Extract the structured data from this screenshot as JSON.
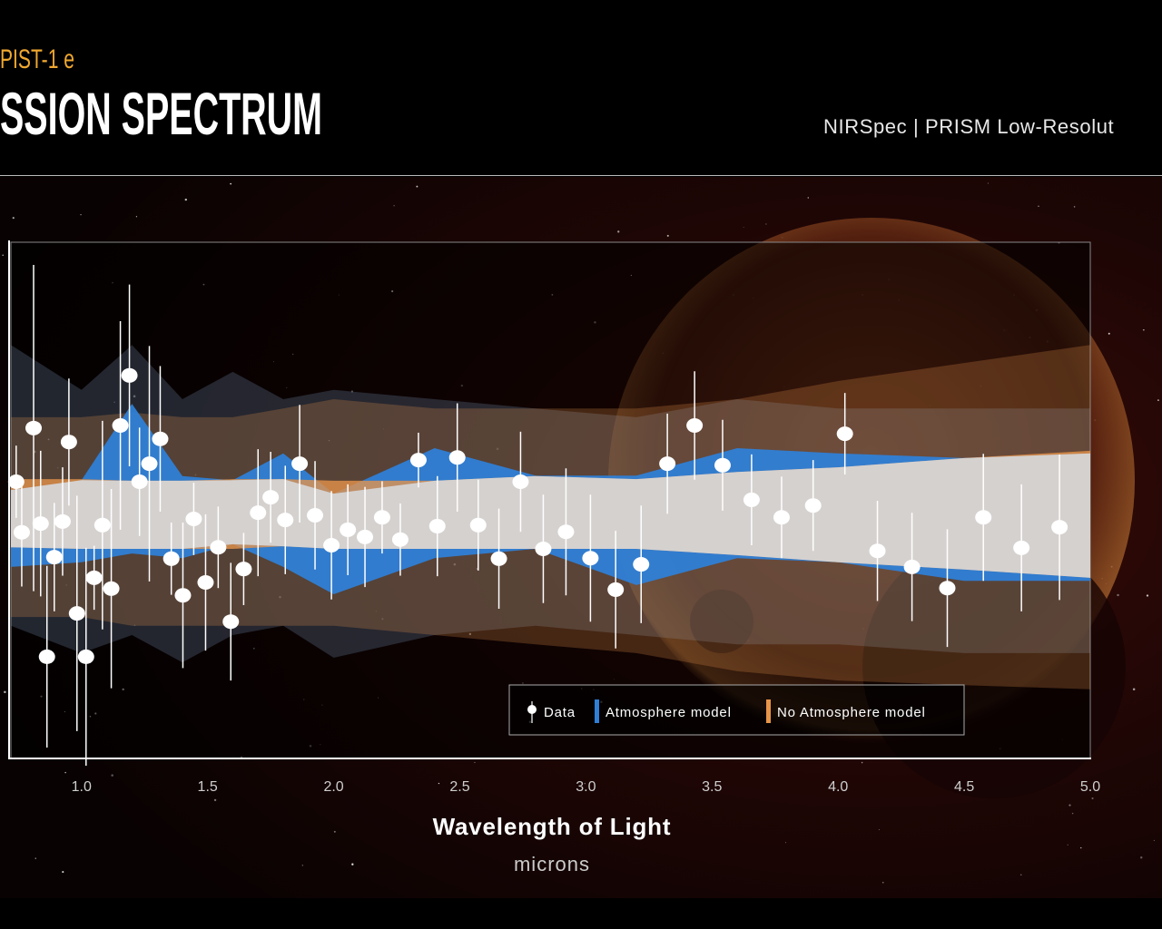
{
  "chart_data": {
    "type": "scatter",
    "supertitle": "PIST-1 e",
    "title": "SSION SPECTRUM",
    "instrument": "NIRSpec | PRISM Low-Resolut",
    "xlabel": "Wavelength of Light",
    "xunit": "microns",
    "xlim": [
      0.72,
      5.0
    ],
    "xticks": [
      {
        "value": 1.0,
        "label": "1.0"
      },
      1.5,
      {
        "value": 2.0,
        "label": "2.0"
      },
      2.5,
      {
        "value": 3.0,
        "label": "3.0"
      },
      3.5,
      {
        "value": 4.0,
        "label": "4.0"
      },
      4.5,
      {
        "value": 5.0,
        "label": "5.0"
      }
    ],
    "ylim": [
      0,
      100
    ],
    "legend": "lower right",
    "series": [
      {
        "name": "Data",
        "color": "#ffffff",
        "x": [
          0.741,
          0.763,
          0.81,
          0.838,
          0.863,
          0.892,
          0.925,
          0.95,
          0.982,
          1.018,
          1.05,
          1.083,
          1.118,
          1.154,
          1.19,
          1.23,
          1.269,
          1.312,
          1.356,
          1.402,
          1.445,
          1.492,
          1.542,
          1.592,
          1.643,
          1.7,
          1.75,
          1.808,
          1.865,
          1.926,
          1.991,
          2.056,
          2.124,
          2.192,
          2.264,
          2.336,
          2.411,
          2.49,
          2.573,
          2.655,
          2.741,
          2.831,
          2.921,
          3.018,
          3.118,
          3.219,
          3.323,
          3.431,
          3.542,
          3.657,
          3.776,
          3.901,
          4.027,
          4.156,
          4.293,
          4.433,
          4.576,
          4.727,
          4.878
        ],
        "values": [
          53.6,
          43.8,
          64.0,
          45.5,
          19.7,
          39.0,
          45.9,
          61.3,
          28.1,
          19.7,
          35.0,
          45.2,
          32.9,
          64.5,
          74.2,
          53.6,
          57.1,
          61.9,
          38.7,
          31.6,
          46.4,
          34.1,
          40.9,
          26.5,
          36.7,
          47.6,
          50.6,
          46.2,
          57.1,
          47.1,
          41.3,
          44.3,
          42.9,
          46.7,
          42.4,
          57.8,
          45.0,
          58.3,
          45.2,
          38.7,
          53.6,
          40.6,
          43.9,
          38.8,
          32.7,
          37.6,
          57.1,
          64.5,
          56.8,
          50.1,
          46.7,
          49.0,
          62.9,
          40.2,
          37.1,
          33.0,
          46.7,
          40.8,
          44.8
        ],
        "errors": [
          7.0,
          10.5,
          31.6,
          14.1,
          17.6,
          10.5,
          10.5,
          12.3,
          22.8,
          21.1,
          6.2,
          20.2,
          19.3,
          20.2,
          17.6,
          10.5,
          22.8,
          14.1,
          7.0,
          14.1,
          7.0,
          13.2,
          7.9,
          11.4,
          7.0,
          12.3,
          8.8,
          10.5,
          11.4,
          10.5,
          10.5,
          8.8,
          9.7,
          7.0,
          7.0,
          5.3,
          9.7,
          10.5,
          8.8,
          9.7,
          9.7,
          10.5,
          12.3,
          12.3,
          11.4,
          11.4,
          9.7,
          10.5,
          8.8,
          8.8,
          7.9,
          8.8,
          7.9,
          9.7,
          10.5,
          11.4,
          12.3,
          12.3,
          14.1
        ]
      }
    ],
    "bands": [
      {
        "name": "Atmosphere model",
        "color": "#2f7fd6",
        "x": [
          0.72,
          1.0,
          1.2,
          1.4,
          1.6,
          1.8,
          2.0,
          2.4,
          2.8,
          3.2,
          3.6,
          4.0,
          4.5,
          5.0
        ],
        "inner_upper": [
          52.0,
          53.9,
          68.7,
          54.7,
          53.9,
          59.1,
          51.3,
          60.1,
          54.8,
          54.8,
          60.1,
          59.1,
          58.2,
          59.1
        ],
        "inner_lower": [
          37.1,
          38.0,
          39.7,
          38.8,
          41.5,
          37.1,
          31.8,
          38.8,
          40.6,
          33.6,
          38.8,
          38.0,
          34.4,
          34.4
        ],
        "outer_upper": [
          80.1,
          71.4,
          80.1,
          69.6,
          74.9,
          69.6,
          71.4,
          69.6,
          67.8,
          66.1,
          69.6,
          67.8,
          67.8,
          67.8
        ],
        "outer_lower": [
          25.7,
          20.4,
          23.9,
          18.6,
          23.9,
          25.7,
          19.5,
          23.9,
          25.7,
          23.9,
          22.1,
          22.1,
          20.4,
          20.4
        ]
      },
      {
        "name": "No Atmosphere model",
        "color": "#e8954a",
        "x": [
          0.72,
          1.0,
          1.2,
          1.4,
          1.6,
          1.8,
          2.0,
          2.4,
          2.8,
          3.2,
          3.6,
          4.0,
          4.5,
          5.0
        ],
        "inner_upper": [
          54.1,
          54.1,
          53.8,
          53.8,
          54.1,
          54.1,
          53.8,
          53.8,
          54.7,
          54.1,
          55.5,
          56.4,
          58.2,
          59.6
        ],
        "inner_lower": [
          40.9,
          40.6,
          40.6,
          40.6,
          40.6,
          41.1,
          40.6,
          40.6,
          40.6,
          40.6,
          39.4,
          38.0,
          36.6,
          35.0
        ],
        "outer_upper": [
          66.1,
          66.1,
          67.0,
          66.1,
          66.1,
          67.8,
          69.6,
          67.8,
          67.8,
          67.8,
          69.6,
          73.1,
          76.6,
          80.1
        ],
        "outer_lower": [
          27.4,
          27.4,
          25.7,
          25.7,
          25.7,
          25.7,
          25.7,
          23.9,
          22.1,
          20.4,
          16.9,
          15.1,
          14.2,
          13.4
        ]
      }
    ]
  }
}
